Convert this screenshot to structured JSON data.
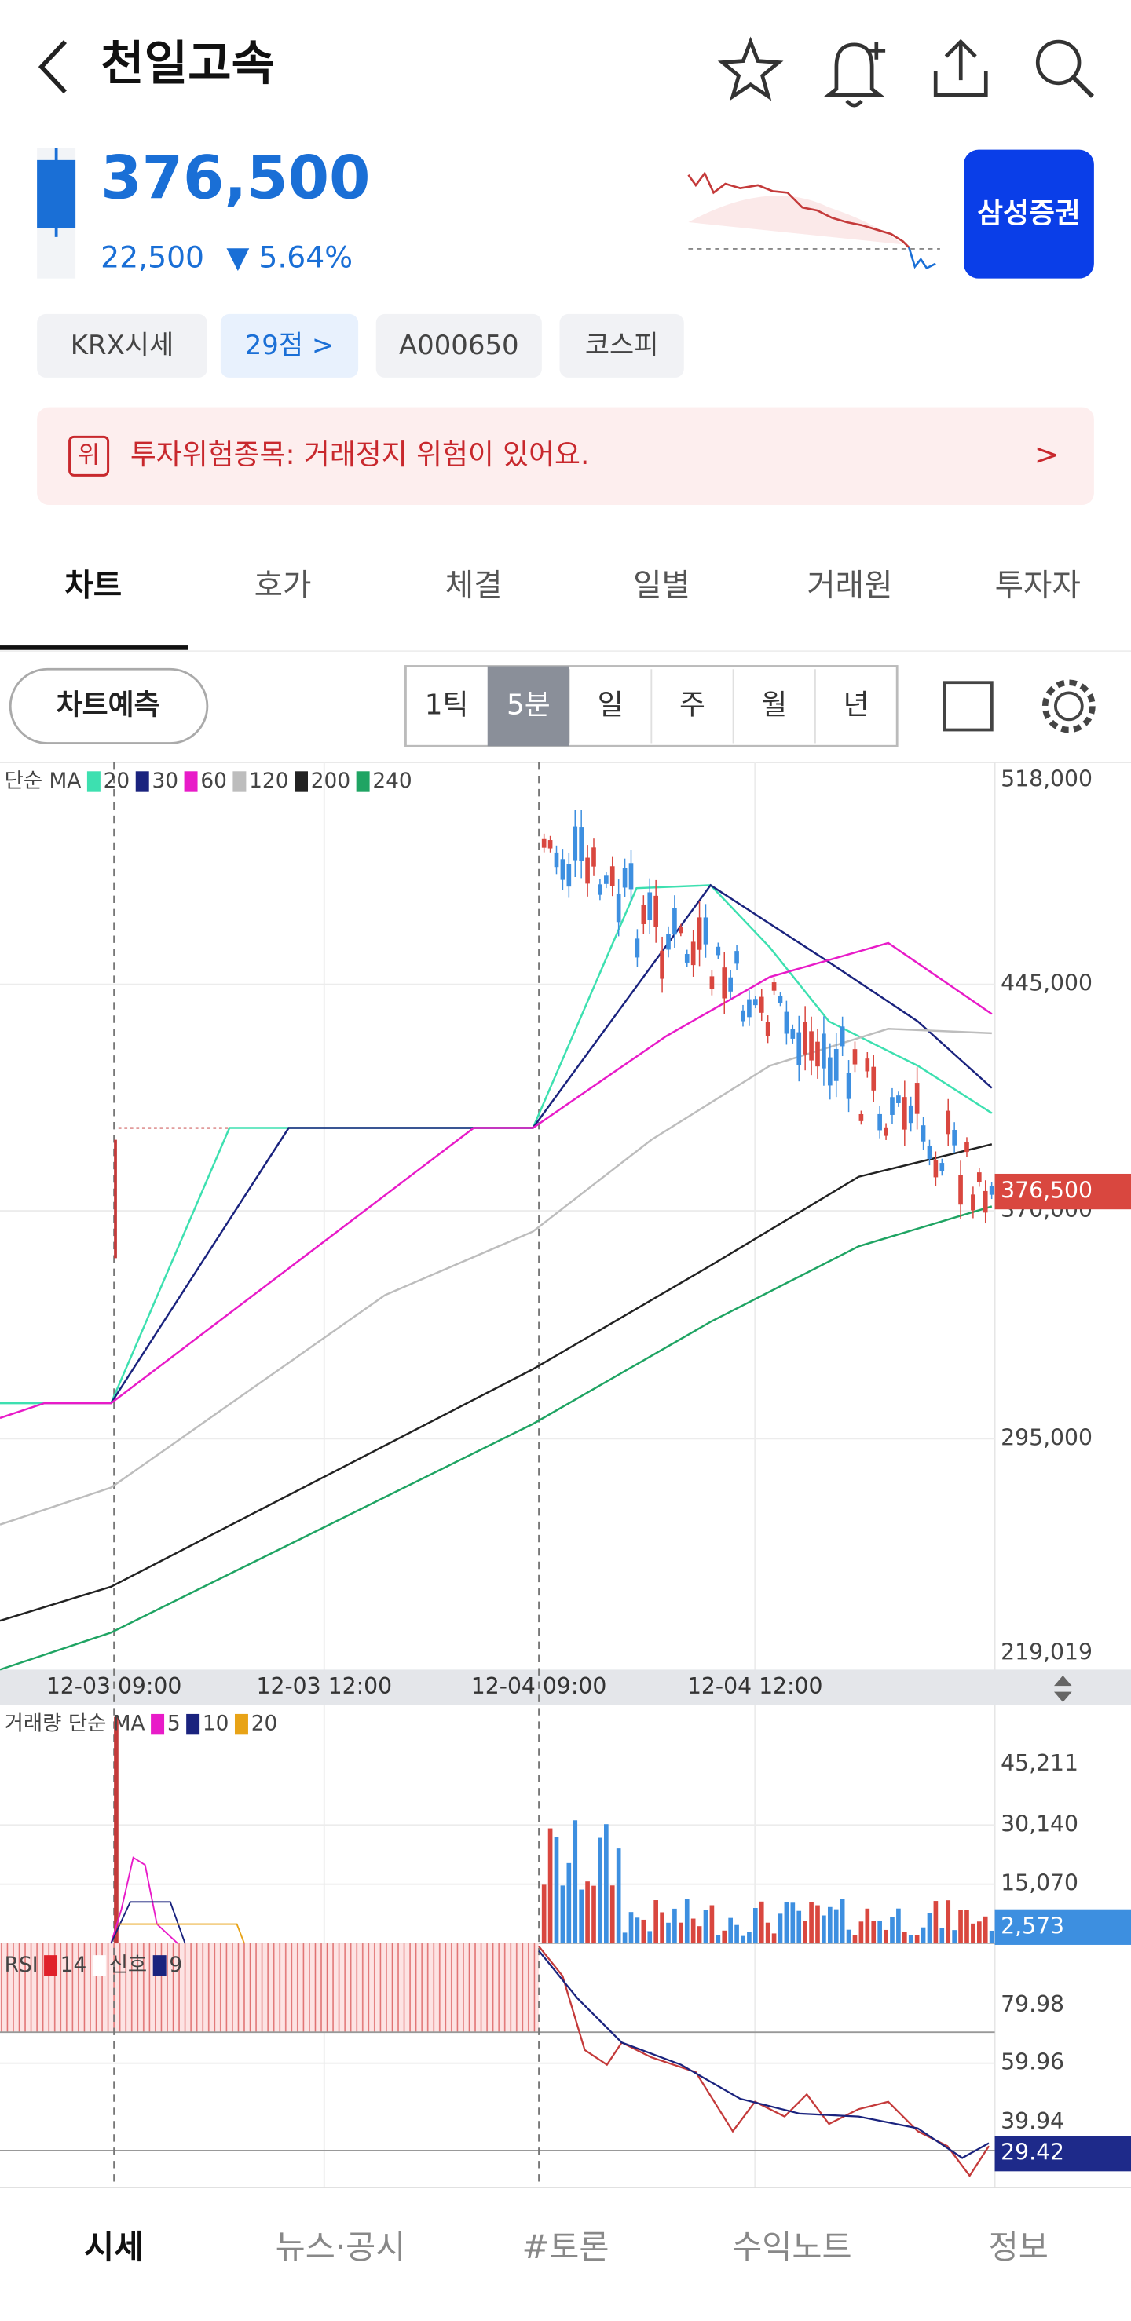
{
  "header": {
    "title": "천일고속"
  },
  "price": {
    "current": "376,500",
    "change": "22,500",
    "change_rate": "▼ 5.64%",
    "broker": "삼성증권"
  },
  "tags": [
    "KRX시세",
    "29점 >",
    "A000650",
    "코스피"
  ],
  "warning": {
    "badge": "위",
    "text": "투자위험종목: 거래정지 위험이 있어요.",
    "arrow": ">"
  },
  "tabs": {
    "items": [
      "차트",
      "호가",
      "체결",
      "일별",
      "거래원",
      "투자자"
    ],
    "selected": 0
  },
  "controls": {
    "predict": "차트예측",
    "periods": [
      "1틱",
      "5분",
      "일",
      "주",
      "월",
      "년"
    ],
    "selected": 1
  },
  "price_chart": {
    "legend": "단순 MA",
    "ma": [
      "20",
      "30",
      "60",
      "120",
      "200",
      "240"
    ],
    "ma_colors": [
      "#3de0b0",
      "#1a237e",
      "#e81bc8",
      "#bdbdbd",
      "#222222",
      "#1fa463"
    ],
    "y_labels": [
      "518,000",
      "445,000",
      "370,000",
      "295,000",
      "219,019"
    ],
    "current_tag": "376,500",
    "x_labels": [
      "12-03 09:00",
      "12-03 12:00",
      "12-04 09:00",
      "12-04 12:00"
    ]
  },
  "volume": {
    "legend": "거래량 단순 MA",
    "ma": [
      "5",
      "10",
      "20"
    ],
    "ma_colors": [
      "#e81bc8",
      "#1a237e",
      "#e8a317"
    ],
    "y_labels": [
      "45,211",
      "30,140",
      "15,070"
    ],
    "current_tag": "2,573"
  },
  "rsi": {
    "legend": "RSI",
    "params": [
      "14",
      "신호",
      "9"
    ],
    "param_colors": [
      "#e0202a",
      "#ffffff",
      "#1a237e"
    ],
    "y_labels": [
      "79.98",
      "59.96",
      "39.94"
    ],
    "current_tag": "29.42"
  },
  "nav": {
    "items": [
      "시세",
      "뉴스·공시",
      "#토론",
      "수익노트",
      "정보"
    ],
    "selected": 0
  }
}
